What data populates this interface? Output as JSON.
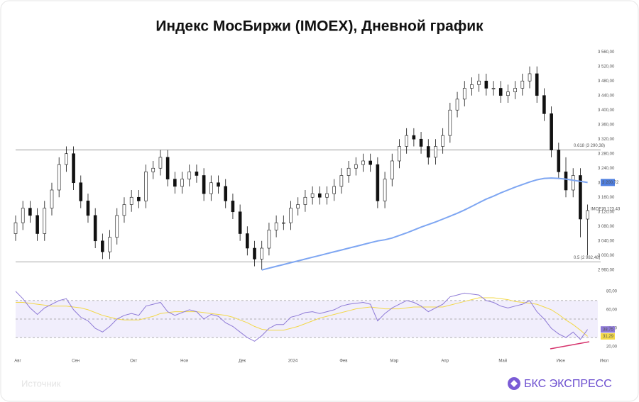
{
  "chart_data": {
    "type": "candlestick",
    "title": "Индекс МосБиржи (IMOEX), Дневной график",
    "series_name": "IMOEX",
    "open": [
      3060,
      3090,
      3130,
      3110,
      3060,
      3130,
      3180,
      3250,
      3280,
      3200,
      3150,
      3110,
      3040,
      3010,
      3050,
      3110,
      3140,
      3160,
      3150,
      3230,
      3240,
      3270,
      3210,
      3190,
      3210,
      3230,
      3220,
      3170,
      3200,
      3190,
      3150,
      3120,
      3060,
      3020,
      2990,
      3020,
      3070,
      3090,
      3090,
      3130,
      3140,
      3160,
      3170,
      3160,
      3170,
      3190,
      3220,
      3240,
      3250,
      3260,
      3250,
      3150,
      3210,
      3260,
      3300,
      3330,
      3320,
      3300,
      3270,
      3300,
      3330,
      3400,
      3430,
      3460,
      3470,
      3480,
      3460,
      3460,
      3440,
      3450,
      3460,
      3480,
      3500,
      3440,
      3390,
      3290,
      3230,
      3180,
      3220,
      3100
    ],
    "high": [
      3110,
      3150,
      3150,
      3130,
      3150,
      3200,
      3270,
      3300,
      3300,
      3220,
      3170,
      3130,
      3060,
      3070,
      3130,
      3160,
      3180,
      3180,
      3250,
      3260,
      3290,
      3290,
      3230,
      3230,
      3250,
      3250,
      3240,
      3220,
      3220,
      3210,
      3170,
      3140,
      3080,
      3040,
      3040,
      3090,
      3110,
      3110,
      3150,
      3160,
      3180,
      3190,
      3190,
      3190,
      3210,
      3240,
      3260,
      3270,
      3280,
      3280,
      3270,
      3230,
      3280,
      3320,
      3350,
      3350,
      3340,
      3320,
      3320,
      3350,
      3420,
      3450,
      3480,
      3490,
      3500,
      3500,
      3480,
      3480,
      3470,
      3480,
      3500,
      3520,
      3520,
      3460,
      3410,
      3310,
      3270,
      3240,
      3240,
      3140
    ],
    "low": [
      3040,
      3070,
      3090,
      3040,
      3040,
      3110,
      3160,
      3230,
      3180,
      3130,
      3090,
      3020,
      2990,
      2990,
      3030,
      3090,
      3120,
      3130,
      3130,
      3210,
      3220,
      3190,
      3170,
      3170,
      3190,
      3200,
      3150,
      3150,
      3170,
      3130,
      3100,
      3040,
      3000,
      2970,
      2960,
      3000,
      3050,
      3070,
      3070,
      3110,
      3120,
      3140,
      3140,
      3140,
      3150,
      3170,
      3200,
      3220,
      3230,
      3230,
      3130,
      3130,
      3190,
      3240,
      3280,
      3300,
      3280,
      3250,
      3250,
      3280,
      3310,
      3380,
      3410,
      3440,
      3450,
      3440,
      3440,
      3420,
      3420,
      3430,
      3440,
      3460,
      3420,
      3370,
      3270,
      3210,
      3160,
      3160,
      3050,
      3000
    ],
    "close": [
      3090,
      3130,
      3110,
      3060,
      3130,
      3180,
      3250,
      3280,
      3200,
      3150,
      3110,
      3040,
      3010,
      3050,
      3110,
      3140,
      3160,
      3150,
      3230,
      3240,
      3270,
      3210,
      3190,
      3210,
      3230,
      3220,
      3170,
      3200,
      3190,
      3150,
      3120,
      3060,
      3020,
      2990,
      3020,
      3070,
      3090,
      3090,
      3130,
      3140,
      3160,
      3170,
      3160,
      3170,
      3190,
      3220,
      3240,
      3250,
      3260,
      3250,
      3150,
      3210,
      3260,
      3300,
      3330,
      3320,
      3300,
      3270,
      3300,
      3330,
      3400,
      3430,
      3460,
      3470,
      3480,
      3460,
      3460,
      3440,
      3450,
      3460,
      3480,
      3500,
      3440,
      3390,
      3290,
      3230,
      3180,
      3220,
      3100,
      3123.43
    ],
    "last_label": "3 123,43",
    "ma": {
      "color": "#7ea6f2",
      "label": "3 200,72",
      "values": [
        null,
        null,
        null,
        null,
        null,
        null,
        null,
        null,
        null,
        null,
        null,
        null,
        null,
        null,
        null,
        null,
        null,
        null,
        null,
        null,
        null,
        null,
        null,
        null,
        null,
        null,
        null,
        null,
        null,
        null,
        null,
        null,
        null,
        null,
        2960,
        2965,
        2970,
        2975,
        2980,
        2985,
        2990,
        2995,
        3000,
        3005,
        3010,
        3015,
        3020,
        3025,
        3030,
        3035,
        3040,
        3043,
        3048,
        3055,
        3062,
        3070,
        3078,
        3085,
        3092,
        3100,
        3108,
        3116,
        3125,
        3135,
        3145,
        3155,
        3163,
        3172,
        3180,
        3188,
        3195,
        3202,
        3208,
        3212,
        3213,
        3212,
        3210,
        3207,
        3204,
        3200.72
      ]
    },
    "levels": [
      {
        "value": 3290.38,
        "label": "0.618 (3 290,38)"
      },
      {
        "value": 2982.48,
        "label": "0.5 (2 982,48)"
      }
    ],
    "xlim": [
      0,
      81
    ],
    "xticks": [
      {
        "value": 0,
        "label": "Авг"
      },
      {
        "value": 8,
        "label": "Сен"
      },
      {
        "value": 16,
        "label": "Окт"
      },
      {
        "value": 23,
        "label": "Ноя"
      },
      {
        "value": 31,
        "label": "Дек"
      },
      {
        "value": 38,
        "label": "2024"
      },
      {
        "value": 45,
        "label": "Фев"
      },
      {
        "value": 52,
        "label": "Мар"
      },
      {
        "value": 59,
        "label": "Апр"
      },
      {
        "value": 67,
        "label": "Май"
      },
      {
        "value": 75,
        "label": "Июн"
      },
      {
        "value": 81,
        "label": "Июл"
      }
    ],
    "ylim": [
      2942,
      3576
    ],
    "yticks": [
      {
        "value": 2960,
        "label": "2 960,00"
      },
      {
        "value": 3000,
        "label": "3 000,00"
      },
      {
        "value": 3040,
        "label": "3 040,00"
      },
      {
        "value": 3080,
        "label": "3 080,00"
      },
      {
        "value": 3120,
        "label": "3 120,00"
      },
      {
        "value": 3160,
        "label": "3 160,00"
      },
      {
        "value": 3200,
        "label": "3 200,00"
      },
      {
        "value": 3240,
        "label": "3 240,00"
      },
      {
        "value": 3280,
        "label": "3 280,00"
      },
      {
        "value": 3320,
        "label": "3 320,00"
      },
      {
        "value": 3360,
        "label": "3 360,00"
      },
      {
        "value": 3400,
        "label": "3 400,00"
      },
      {
        "value": 3440,
        "label": "3 440,00"
      },
      {
        "value": 3480,
        "label": "3 480,00"
      },
      {
        "value": 3520,
        "label": "3 520,00"
      },
      {
        "value": 3560,
        "label": "3 560,00"
      }
    ],
    "rsi": {
      "color": "#8e7ad6",
      "label": "38,75",
      "values": [
        80,
        72,
        62,
        55,
        62,
        66,
        70,
        72,
        60,
        52,
        48,
        40,
        36,
        42,
        50,
        54,
        56,
        54,
        64,
        66,
        68,
        58,
        54,
        57,
        60,
        58,
        50,
        55,
        53,
        46,
        42,
        36,
        30,
        26,
        32,
        40,
        44,
        44,
        52,
        54,
        57,
        58,
        56,
        58,
        60,
        64,
        66,
        67,
        68,
        66,
        48,
        56,
        62,
        66,
        70,
        68,
        64,
        58,
        62,
        66,
        74,
        76,
        78,
        77,
        76,
        70,
        68,
        64,
        62,
        64,
        66,
        70,
        58,
        50,
        40,
        34,
        30,
        36,
        28,
        38.75
      ]
    },
    "rsi_ma": {
      "color": "#f2d84a",
      "label": "31,29",
      "values": [
        68,
        68,
        67,
        66,
        65,
        64,
        64,
        64,
        63,
        62,
        60,
        57,
        54,
        52,
        50,
        49,
        49,
        49,
        51,
        53,
        56,
        57,
        58,
        58,
        58,
        58,
        57,
        56,
        55,
        54,
        52,
        49,
        46,
        42,
        39,
        38,
        38,
        38,
        40,
        42,
        45,
        48,
        51,
        53,
        55,
        57,
        59,
        61,
        62,
        63,
        62,
        61,
        61,
        61,
        62,
        63,
        63,
        63,
        63,
        63,
        65,
        67,
        69,
        71,
        73,
        73,
        73,
        72,
        71,
        69,
        68,
        67,
        66,
        63,
        60,
        55,
        49,
        44,
        38,
        31.29
      ]
    },
    "rsi_ylim": [
      14,
      86
    ],
    "rsi_yticks": [
      {
        "value": 20,
        "label": "20,00"
      },
      {
        "value": 40,
        "label": "40,00"
      },
      {
        "value": 60,
        "label": "60,00"
      },
      {
        "value": 80,
        "label": "80,00"
      }
    ],
    "rsi_band": [
      30,
      70
    ],
    "rsi_mid": 50,
    "source": "Источник",
    "brand": "БКС ЭКСПРЕСС"
  }
}
